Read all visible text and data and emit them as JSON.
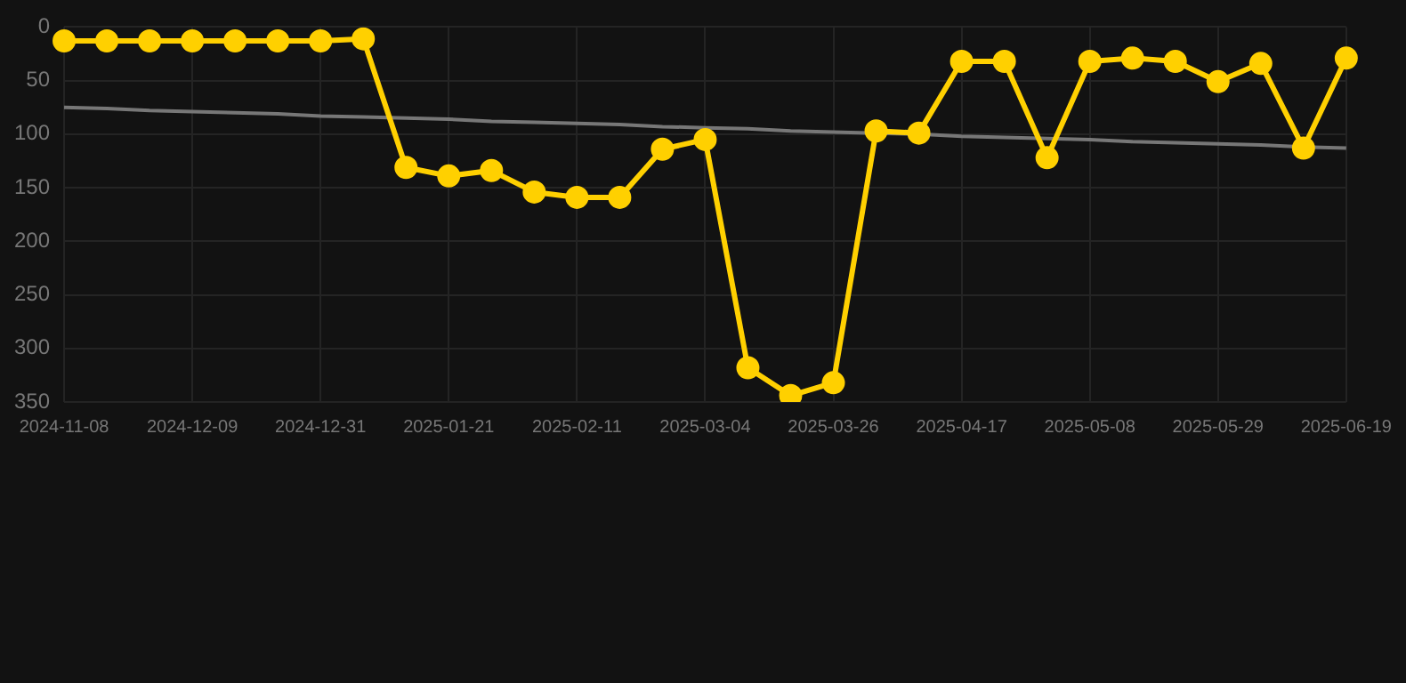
{
  "chart_data": {
    "type": "line",
    "categories": [
      "2024-11-08",
      null,
      null,
      "2024-12-09",
      null,
      null,
      "2024-12-31",
      null,
      null,
      "2025-01-21",
      null,
      null,
      "2025-02-11",
      null,
      null,
      "2025-03-04",
      null,
      null,
      "2025-03-26",
      null,
      null,
      "2025-04-17",
      null,
      null,
      "2025-05-08",
      null,
      null,
      "2025-05-29",
      null,
      null,
      "2025-06-19"
    ],
    "series": [
      {
        "color": "#ffd000",
        "marker": "circle",
        "values": [
          13,
          13,
          13,
          13,
          13,
          13,
          13,
          11,
          131,
          139,
          134,
          154,
          159,
          159,
          114,
          105,
          318,
          344,
          332,
          97,
          99,
          32,
          32,
          122,
          32,
          29,
          32,
          51,
          34,
          113,
          29
        ]
      },
      {
        "type": "line",
        "color": "#777777",
        "marker": "none",
        "values": [
          75,
          76,
          78,
          79,
          80,
          81,
          83,
          84,
          85,
          86,
          88,
          89,
          90,
          91,
          93,
          94,
          95,
          97,
          98,
          99,
          100,
          102,
          103,
          104,
          105,
          107,
          108,
          109,
          110,
          112,
          113
        ]
      }
    ],
    "ylim": [
      350,
      0
    ],
    "yticks": [
      0,
      50,
      100,
      150,
      200,
      250,
      300,
      350
    ],
    "grid": true,
    "legend": false
  }
}
